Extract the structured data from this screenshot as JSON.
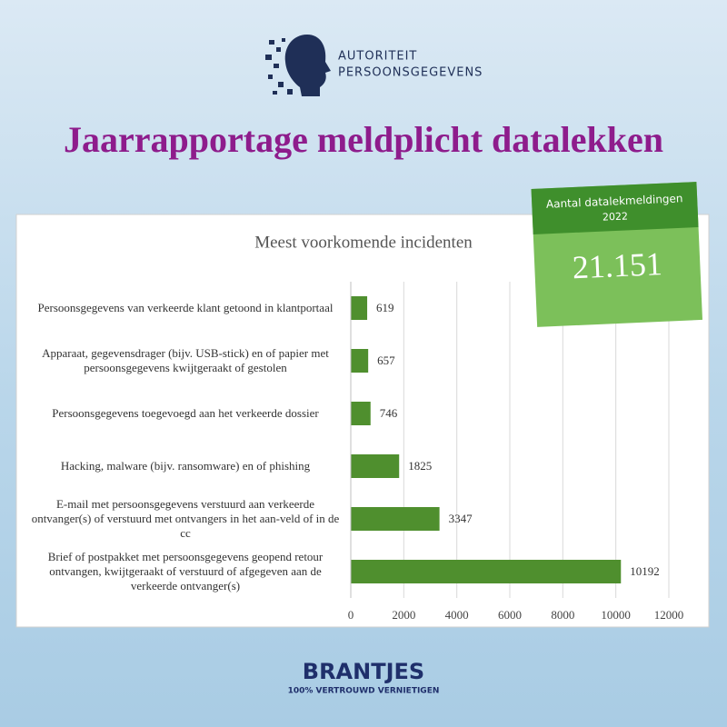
{
  "header": {
    "org_line1": "AUTORITEIT",
    "org_line2": "PERSOONSGEGEVENS",
    "title": "Jaarrapportage meldplicht datalekken"
  },
  "card": {
    "label": "Aantal datalekmeldingen",
    "year": "2022",
    "value": "21.151"
  },
  "footer": {
    "brand": "BRANTJES",
    "tagline": "100% VERTROUWD VERNIETIGEN"
  },
  "chart_data": {
    "type": "bar",
    "orientation": "horizontal",
    "title": "Meest voorkomende incidenten",
    "categories": [
      "Persoonsgegevens van verkeerde klant getoond in klantportaal",
      "Apparaat, gegevensdrager (bijv. USB-stick) en of papier met persoonsgegevens kwijtgeraakt of gestolen",
      "Persoonsgegevens toegevoegd aan het verkeerde dossier",
      "Hacking, malware (bijv. ransomware) en of phishing",
      "E-mail met persoonsgegevens verstuurd aan verkeerde ontvanger(s) of verstuurd met ontvangers in het aan-veld of in de cc",
      "Brief of postpakket met persoonsgegevens geopend retour ontvangen, kwijtgeraakt of verstuurd of afgegeven aan de verkeerde ontvanger(s)"
    ],
    "values": [
      619,
      657,
      746,
      1825,
      3347,
      10192
    ],
    "color": "#4f8f2e",
    "xlim": [
      0,
      12000
    ],
    "xticks": [
      0,
      2000,
      4000,
      6000,
      8000,
      10000,
      12000
    ],
    "grid": true
  }
}
